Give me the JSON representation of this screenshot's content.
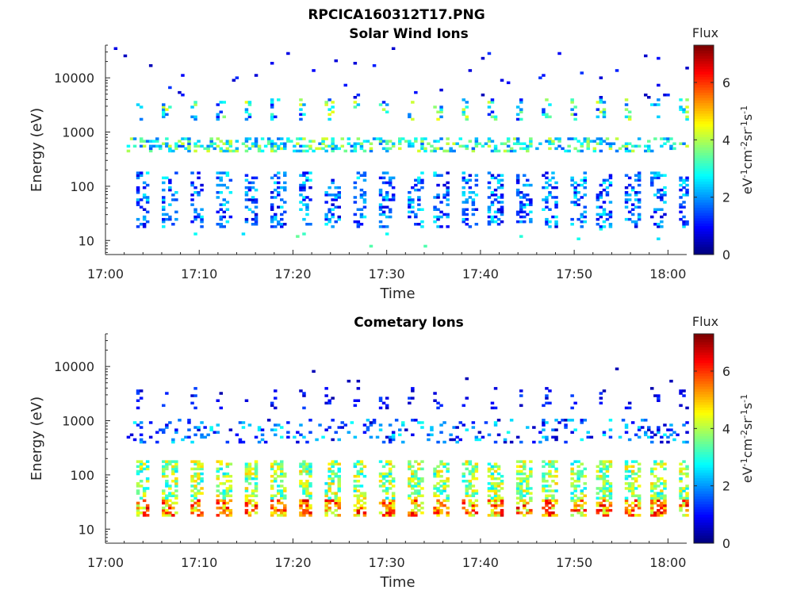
{
  "figure_title": "RPCICA160312T17.PNG",
  "chart_data": [
    {
      "type": "heatmap",
      "title": "Solar Wind Ions",
      "xlabel": "Time",
      "ylabel": "Energy (eV)",
      "x_ticks": [
        "17:00",
        "17:10",
        "17:20",
        "17:30",
        "17:40",
        "17:50",
        "18:00"
      ],
      "x_range_minutes": [
        0,
        62
      ],
      "y_scale": "log",
      "y_ticks": [
        "10",
        "100",
        "1000",
        "10000"
      ],
      "y_range": [
        5.5,
        40000
      ],
      "colorbar": {
        "title": "Flux",
        "label": "eV-1cm-2sr-1s-1",
        "range": [
          0,
          7.3
        ],
        "ticks": [
          "0",
          "2",
          "4",
          "6"
        ]
      }
    },
    {
      "type": "heatmap",
      "title": "Cometary Ions",
      "xlabel": "Time",
      "ylabel": "Energy (eV)",
      "x_ticks": [
        "17:00",
        "17:10",
        "17:20",
        "17:30",
        "17:40",
        "17:50",
        "18:00"
      ],
      "x_range_minutes": [
        0,
        62
      ],
      "y_scale": "log",
      "y_ticks": [
        "10",
        "100",
        "1000",
        "10000"
      ],
      "y_range": [
        5.5,
        40000
      ],
      "colorbar": {
        "title": "Flux",
        "label": "eV-1cm-2sr-1s-1",
        "range": [
          0,
          7.3
        ],
        "ticks": [
          "0",
          "2",
          "4",
          "6"
        ]
      }
    }
  ]
}
